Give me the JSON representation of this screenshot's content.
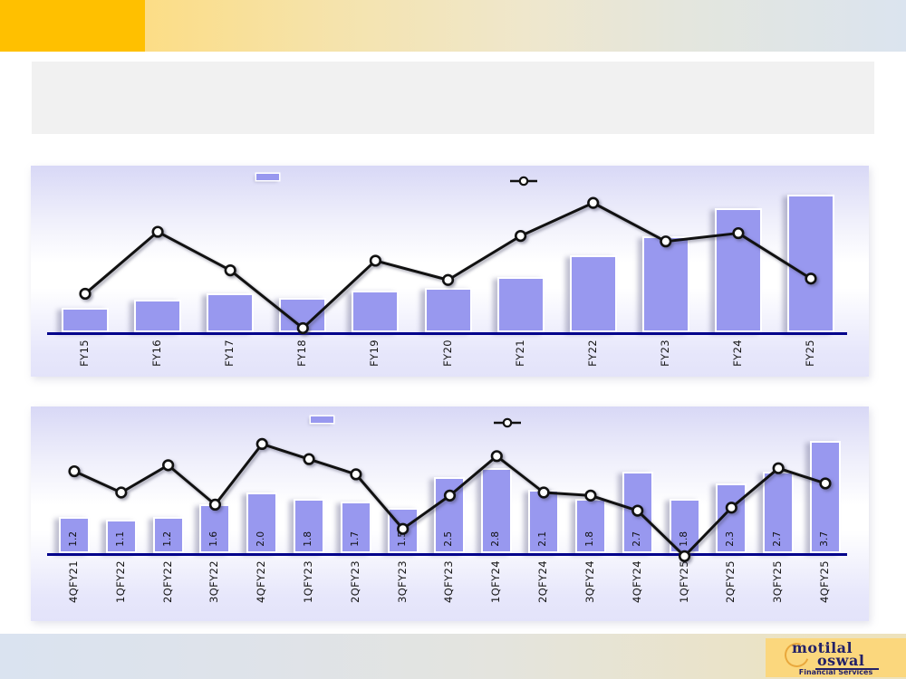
{
  "slide": {
    "title": "",
    "accent_colors": {
      "header_gold": "#FFC000",
      "header_gradient_end": "#DBE4EF",
      "footer_gradient_start": "#DAE3F0",
      "footer_gradient_end": "#EDE2BB",
      "title_box_fill": "#F1F1F1",
      "panel_gradient_lavender": "#D8D8F6",
      "bar_fill": "#9898EF",
      "axis_navy": "#00008B",
      "line_black": "#111111"
    }
  },
  "logo": {
    "line1": "motilal",
    "line2": "oswal",
    "subtitle": "Financial Services",
    "background": "#FBD77D",
    "text_color": "#232168",
    "ring_color": "#E9A83C"
  },
  "chart_data": [
    {
      "id": "annual",
      "type": "bar",
      "subtype": "bar+line combo, no axis values or data labels shown",
      "title": "",
      "xlabel": "",
      "ylabel": "",
      "categories": [
        "FY15",
        "FY16",
        "FY17",
        "FY18",
        "FY19",
        "FY20",
        "FY21",
        "FY22",
        "FY23",
        "FY24",
        "FY25"
      ],
      "series": [
        {
          "name": "bar-series",
          "type": "bar",
          "color": "#9898EF",
          "values": [
            18,
            24,
            28,
            25,
            30,
            32,
            40,
            56,
            70,
            90,
            100
          ],
          "unit": "relative height, % of tallest bar (FY25=100); no numeric labels visible"
        },
        {
          "name": "line-series",
          "type": "line",
          "color": "#111111",
          "values": [
            28,
            73,
            45,
            3,
            52,
            38,
            70,
            94,
            66,
            72,
            39
          ],
          "unit": "relative height, % of plot (estimated); no numeric labels visible"
        }
      ],
      "legend": "two unlabeled swatches top-center (bar swatch, line-with-marker swatch)",
      "axes": {
        "y_axis_visible": false,
        "gridlines": false,
        "x_tick_rotation_deg": 90
      }
    },
    {
      "id": "quarterly",
      "type": "bar",
      "subtype": "bar+line combo with data labels inside bars",
      "title": "",
      "xlabel": "",
      "ylabel": "",
      "categories": [
        "4QFY21",
        "1QFY22",
        "2QFY22",
        "3QFY22",
        "4QFY22",
        "1QFY23",
        "2QFY23",
        "3QFY23",
        "4QFY23",
        "1QFY24",
        "2QFY24",
        "3QFY24",
        "4QFY24",
        "1QFY25",
        "2QFY25",
        "3QFY25",
        "4QFY25"
      ],
      "series": [
        {
          "name": "bar-series",
          "type": "bar",
          "color": "#9898EF",
          "values": [
            1.2,
            1.1,
            1.2,
            1.6,
            2.0,
            1.8,
            1.7,
            1.5,
            2.5,
            2.8,
            2.1,
            1.8,
            2.7,
            1.8,
            2.3,
            2.7,
            3.7
          ],
          "labels": [
            "1.2",
            "1.1",
            "1.2",
            "1.6",
            "2.0",
            "1.8",
            "1.7",
            "1.5",
            "2.5",
            "2.8",
            "2.1",
            "1.8",
            "2.7",
            "1.8",
            "2.3",
            "2.7",
            "3.7"
          ],
          "data_label_style": "rotated 90deg inside bar near base"
        },
        {
          "name": "line-series",
          "type": "line",
          "color": "#111111",
          "values": [
            2.7,
            2.0,
            2.9,
            1.6,
            3.6,
            3.1,
            2.6,
            0.8,
            1.9,
            3.2,
            2.0,
            1.9,
            1.4,
            -0.1,
            1.5,
            2.8,
            2.3
          ],
          "unit": "estimated from pixel height on unlabeled secondary scale (bar units)"
        }
      ],
      "legend": "two unlabeled swatches top-center (bar swatch, line-with-marker swatch)",
      "axes": {
        "y_axis_visible": false,
        "gridlines": false,
        "x_tick_rotation_deg": 90
      }
    }
  ]
}
